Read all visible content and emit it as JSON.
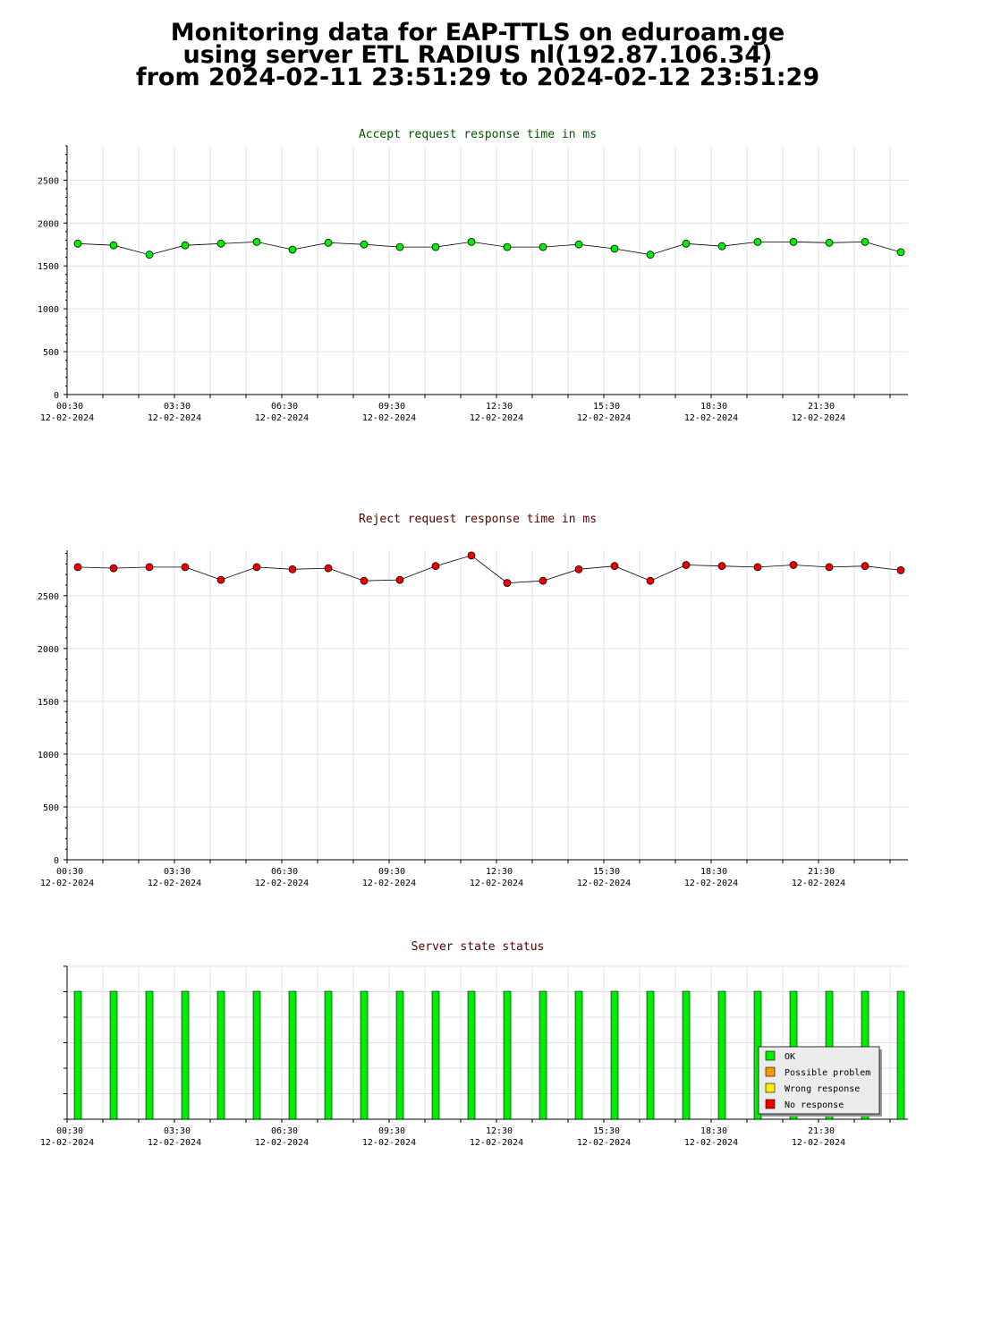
{
  "header": {
    "line1": "Monitoring data for EAP-TTLS on eduroam.ge",
    "line2": "using server ETL RADIUS nl(192.87.106.34)",
    "line3": "from 2024-02-11 23:51:29 to 2024-02-12 23:51:29"
  },
  "colors": {
    "accept_title": "#005500",
    "reject_title": "#550000",
    "status_title": "#550000",
    "accept_marker": "#00ee00",
    "reject_marker": "#ee0000",
    "ok": "#00ee00",
    "possible_problem": "#ff9900",
    "wrong_response": "#ffee00",
    "no_response": "#ee0000"
  },
  "chart_data": [
    {
      "type": "line",
      "title": "Accept request response time in ms",
      "x_tick_times": [
        "00:30",
        "03:30",
        "06:30",
        "09:30",
        "12:30",
        "15:30",
        "18:30",
        "21:30"
      ],
      "x_tick_dates": [
        "12-02-2024",
        "12-02-2024",
        "12-02-2024",
        "12-02-2024",
        "12-02-2024",
        "12-02-2024",
        "12-02-2024",
        "12-02-2024"
      ],
      "y_ticks": [
        0,
        500,
        1000,
        1500,
        2000,
        2500
      ],
      "ylim": [
        0,
        2900
      ],
      "grid": true,
      "series": [
        {
          "values": [
            1760,
            1740,
            1630,
            1740,
            1760,
            1780,
            1690,
            1770,
            1750,
            1720,
            1720,
            1780,
            1720,
            1720,
            1750,
            1700,
            1630,
            1760,
            1730,
            1780,
            1780,
            1770,
            1780,
            1660
          ]
        }
      ]
    },
    {
      "type": "line",
      "title": "Reject request response time in ms",
      "x_tick_times": [
        "00:30",
        "03:30",
        "06:30",
        "09:30",
        "12:30",
        "15:30",
        "18:30",
        "21:30"
      ],
      "x_tick_dates": [
        "12-02-2024",
        "12-02-2024",
        "12-02-2024",
        "12-02-2024",
        "12-02-2024",
        "12-02-2024",
        "12-02-2024",
        "12-02-2024"
      ],
      "y_ticks": [
        0,
        500,
        1000,
        1500,
        2000,
        2500
      ],
      "ylim": [
        0,
        2930
      ],
      "grid": true,
      "series": [
        {
          "values": [
            2770,
            2760,
            2770,
            2770,
            2650,
            2770,
            2750,
            2760,
            2640,
            2650,
            2780,
            2880,
            2620,
            2640,
            2750,
            2780,
            2640,
            2790,
            2780,
            2770,
            2790,
            2770,
            2780,
            2740
          ]
        }
      ]
    },
    {
      "type": "bar",
      "title": "Server state status",
      "x_tick_times": [
        "00:30",
        "03:30",
        "06:30",
        "09:30",
        "12:30",
        "15:30",
        "18:30",
        "21:30"
      ],
      "x_tick_dates": [
        "12-02-2024",
        "12-02-2024",
        "12-02-2024",
        "12-02-2024",
        "12-02-2024",
        "12-02-2024",
        "12-02-2024",
        "12-02-2024"
      ],
      "status": [
        "OK",
        "OK",
        "OK",
        "OK",
        "OK",
        "OK",
        "OK",
        "OK",
        "OK",
        "OK",
        "OK",
        "OK",
        "OK",
        "OK",
        "OK",
        "OK",
        "OK",
        "OK",
        "OK",
        "OK",
        "OK",
        "OK",
        "OK",
        "OK"
      ],
      "legend": [
        "OK",
        "Possible problem",
        "Wrong response",
        "No response"
      ],
      "legend_position": "bottom-right",
      "grid": true
    }
  ]
}
